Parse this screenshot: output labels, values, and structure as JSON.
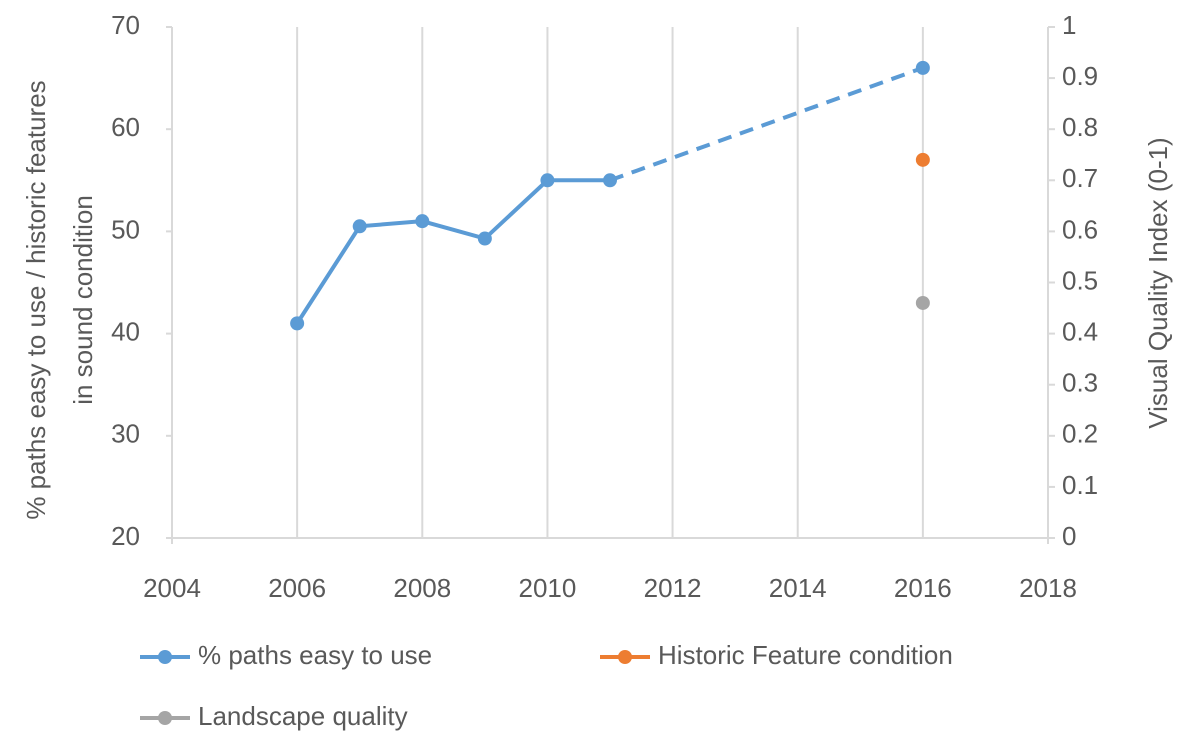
{
  "chart_data": {
    "type": "line",
    "ylabel": [
      "% paths easy to use / historic features",
      "in sound condition"
    ],
    "y2label": "Visual Quality Index (0-1)",
    "xlim": [
      2004,
      2018
    ],
    "xticks": [
      2004,
      2006,
      2008,
      2010,
      2012,
      2014,
      2016,
      2018
    ],
    "ylim": [
      20,
      70
    ],
    "yticks": [
      20,
      30,
      40,
      50,
      60,
      70
    ],
    "y2lim": [
      0,
      1
    ],
    "y2ticks": [
      0,
      0.1,
      0.2,
      0.3,
      0.4,
      0.5,
      0.6,
      0.7,
      0.8,
      0.9,
      1
    ],
    "grid": "x",
    "series": [
      {
        "name": "% paths easy to use",
        "color": "#5b9bd5",
        "x": [
          2006,
          2007,
          2008,
          2009,
          2010,
          2011,
          2016
        ],
        "values": [
          41,
          50.5,
          51,
          49.3,
          55,
          55,
          66
        ],
        "segment_styles": [
          "solid",
          "solid",
          "solid",
          "solid",
          "solid",
          "dashed"
        ]
      },
      {
        "name": "Historic Feature condition",
        "color": "#ed7d31",
        "x": [
          2016
        ],
        "values": [
          57
        ]
      },
      {
        "name": "Landscape quality",
        "color": "#a5a5a5",
        "x": [
          2016
        ],
        "values": [
          0.46
        ],
        "axis": "y2"
      }
    ]
  }
}
